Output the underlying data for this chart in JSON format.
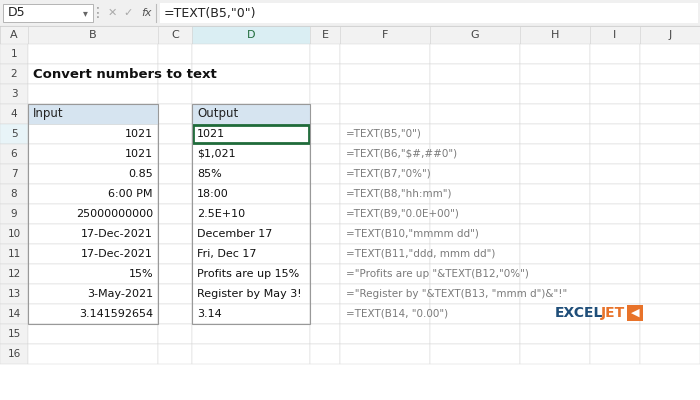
{
  "title": "Convert numbers to text",
  "formula_bar_cell": "D5",
  "formula_bar_text": "=TEXT(B5,\"0\")",
  "col_labels": [
    "A",
    "B",
    "C",
    "D",
    "E",
    "F",
    "G",
    "H",
    "I",
    "J"
  ],
  "input_header": "Input",
  "output_header": "Output",
  "input_values": [
    "1021",
    "1021",
    "0.85",
    "6:00 PM",
    "25000000000",
    "17-Dec-2021",
    "17-Dec-2021",
    "15%",
    "3-May-2021",
    "3.141592654"
  ],
  "output_values": [
    "1021",
    "$1,021",
    "85%",
    "18:00",
    "2.5E+10",
    "December 17",
    "Fri, Dec 17",
    "Profits are up 15%",
    "Register by May 3!",
    "3.14"
  ],
  "formulas": [
    "=TEXT(B5,\"0\")",
    "=TEXT(B6,\"$#,##0\")",
    "=TEXT(B7,\"0%\")",
    "=TEXT(B8,\"hh:mm\")",
    "=TEXT(B9,\"0.0E+00\")",
    "=TEXT(B10,\"mmmm dd\")",
    "=TEXT(B11,\"ddd, mmm dd\")",
    "=\"Profits are up \"&TEXT(B12,\"0%\")",
    "=\"Register by \"&TEXT(B13, \"mmm d\")&\"!\"",
    "=TEXT(B14, \"0.00\")"
  ],
  "bg_color": "#FFFFFF",
  "col_header_bg": "#F2F2F2",
  "row_header_bg": "#F2F2F2",
  "input_header_bg": "#D6E4F0",
  "output_header_bg": "#D6E4F0",
  "selected_col_bg": "#DAEEF3",
  "selected_row_bg": "#E8F4F8",
  "selected_cell_border": "#1F6B3A",
  "formula_color": "#7B7B7B",
  "grid_color": "#D3D3D3",
  "exceljet_blue": "#1F4E79",
  "exceljet_orange": "#E8732A",
  "num_rows": 16
}
